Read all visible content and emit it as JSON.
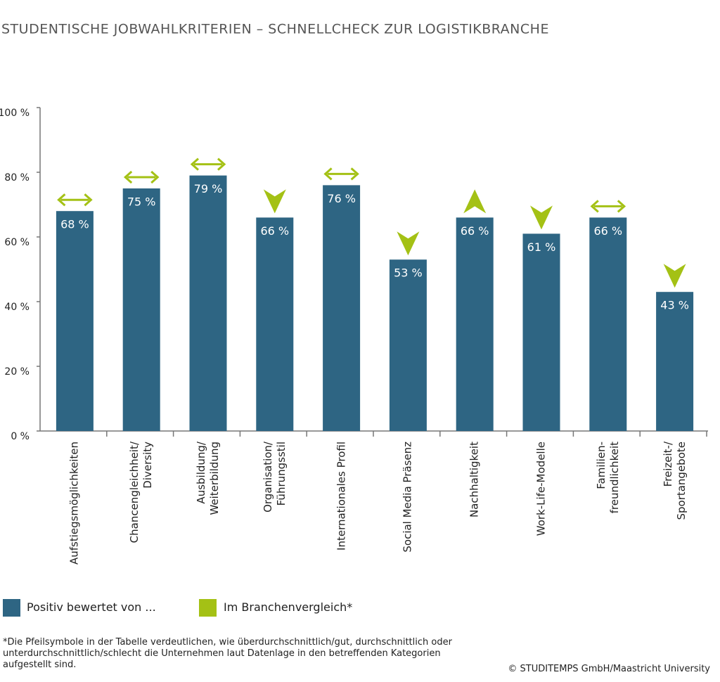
{
  "chart_data": {
    "type": "bar",
    "title": "STUDENTISCHE JOBWAHLKRITERIEN – SCHNELLCHECK ZUR LOGISTIKBRANCHE",
    "categories": [
      "Aufstiegsmöglichkeiten",
      "Chancengleichheit/\nDiversity",
      "Ausbildung/\nWeiterbildung",
      "Organisation/\nFührungsstil",
      "Internationales Profil",
      "Social Media Präsenz",
      "Nachhaltigkeit",
      "Work-Life-Modelle",
      "Familien-\nfreundlichkeit",
      "Freizeit-/\nSportangebote"
    ],
    "series": [
      {
        "name": "Positiv bewertet von ...",
        "color": "#2e6583",
        "values": [
          68,
          75,
          79,
          66,
          76,
          53,
          66,
          61,
          66,
          43
        ],
        "value_labels": [
          "68 %",
          "75 %",
          "79 %",
          "66 %",
          "76 %",
          "53 %",
          "66 %",
          "61 %",
          "66 %",
          "43 %"
        ]
      }
    ],
    "comparison": {
      "name": "Im Branchenvergleich*",
      "color": "#a4c115",
      "directions": [
        "equal",
        "equal",
        "equal",
        "down",
        "equal",
        "down",
        "up",
        "down",
        "equal",
        "down"
      ]
    },
    "ylim": [
      0,
      100
    ],
    "yticks": [
      {
        "value": 0,
        "label": "0 %"
      },
      {
        "value": 20,
        "label": "20 %"
      },
      {
        "value": 40,
        "label": "40 %"
      },
      {
        "value": 60,
        "label": "60 %"
      },
      {
        "value": 80,
        "label": "80 %"
      },
      {
        "value": 100,
        "label": "100 %"
      }
    ],
    "footnote": "*Die Pfeilsymbole in der Tabelle verdeutlichen, wie überdurchschnittlich/gut, durchschnittlich oder unterdurchschnittlich/schlecht die Unternehmen laut Datenlage in den betreffenden Kategorien aufgestellt sind.",
    "source": "© STUDITEMPS GmbH/Maastricht University"
  }
}
